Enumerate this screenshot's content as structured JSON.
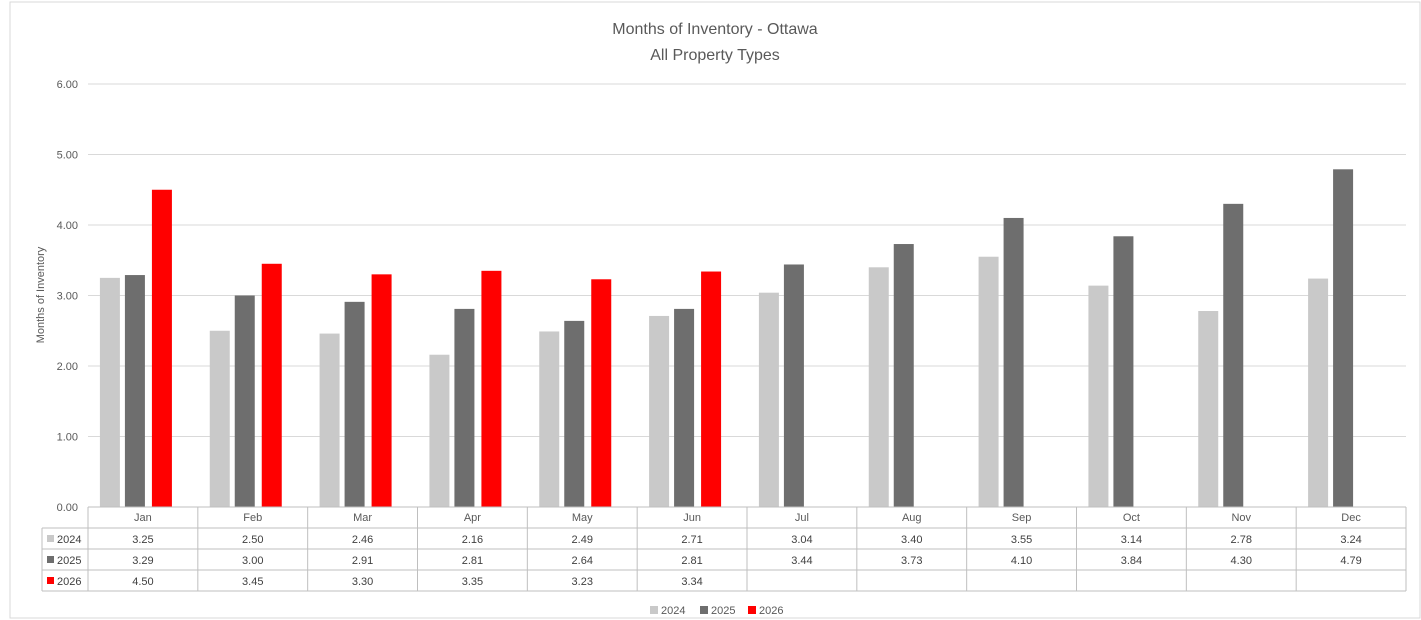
{
  "chart_data": {
    "type": "bar",
    "title": "Months of Inventory - Ottawa",
    "subtitle": "All Property Types",
    "ylabel": "Months of Inventory",
    "xlabel": "",
    "ylim": [
      0,
      6
    ],
    "yticks": [
      "0.00",
      "1.00",
      "2.00",
      "3.00",
      "4.00",
      "5.00",
      "6.00"
    ],
    "grid": true,
    "legend_position": "bottom",
    "categories": [
      "Jan",
      "Feb",
      "Mar",
      "Apr",
      "May",
      "Jun",
      "Jul",
      "Aug",
      "Sep",
      "Oct",
      "Nov",
      "Dec"
    ],
    "series": [
      {
        "name": "2024",
        "color": "#c9c9c9",
        "values": [
          3.25,
          2.5,
          2.46,
          2.16,
          2.49,
          2.71,
          3.04,
          3.4,
          3.55,
          3.14,
          2.78,
          3.24
        ],
        "labels": [
          "3.25",
          "2.50",
          "2.46",
          "2.16",
          "2.49",
          "2.71",
          "3.04",
          "3.40",
          "3.55",
          "3.14",
          "2.78",
          "3.24"
        ]
      },
      {
        "name": "2025",
        "color": "#6e6e6e",
        "values": [
          3.29,
          3.0,
          2.91,
          2.81,
          2.64,
          2.81,
          3.44,
          3.73,
          4.1,
          3.84,
          4.3,
          4.79
        ],
        "labels": [
          "3.29",
          "3.00",
          "2.91",
          "2.81",
          "2.64",
          "2.81",
          "3.44",
          "3.73",
          "4.10",
          "3.84",
          "4.30",
          "4.79"
        ]
      },
      {
        "name": "2026",
        "color": "#ff0000",
        "values": [
          4.5,
          3.45,
          3.3,
          3.35,
          3.23,
          3.34,
          null,
          null,
          null,
          null,
          null,
          null
        ],
        "labels": [
          "4.50",
          "3.45",
          "3.30",
          "3.35",
          "3.23",
          "3.34",
          "",
          "",
          "",
          "",
          "",
          ""
        ]
      }
    ],
    "data_table": true
  }
}
